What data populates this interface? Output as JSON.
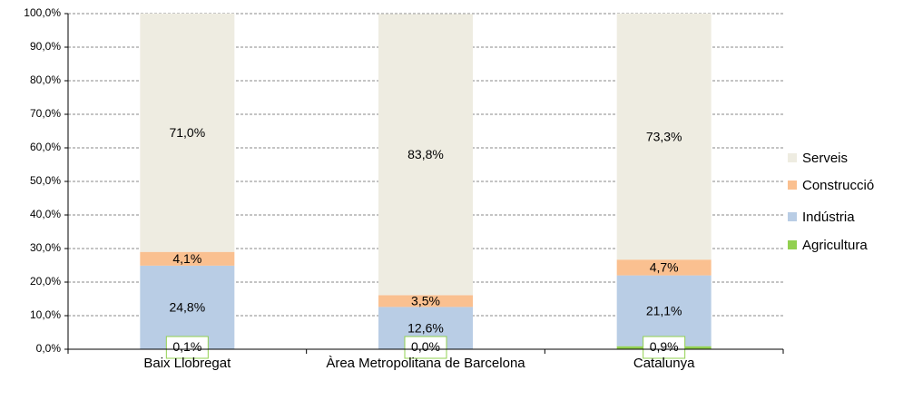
{
  "chart_data": {
    "type": "stacked_bar",
    "categories": [
      "Baix Llobregat",
      "Àrea Metropolitana de Barcelona",
      "Catalunya"
    ],
    "series": [
      {
        "name": "Agricultura",
        "color": "#92d050",
        "values": [
          0.1,
          0.0,
          0.9
        ],
        "value_labels": [
          "0,1%",
          "0,0%",
          "0,9%"
        ]
      },
      {
        "name": "Indústria",
        "color": "#b9cde5",
        "values": [
          24.8,
          12.6,
          21.1
        ],
        "value_labels": [
          "24,8%",
          "12,6%",
          "21,1%"
        ]
      },
      {
        "name": "Construcció",
        "color": "#fac090",
        "values": [
          4.1,
          3.5,
          4.7
        ],
        "value_labels": [
          "4,1%",
          "3,5%",
          "4,7%"
        ]
      },
      {
        "name": "Serveis",
        "color": "#eeece1",
        "values": [
          71.0,
          83.8,
          73.3
        ],
        "value_labels": [
          "71,0%",
          "83,8%",
          "73,3%"
        ]
      }
    ],
    "ylim": [
      0,
      100
    ],
    "yticks": [
      {
        "value": 0,
        "label": "0,0%"
      },
      {
        "value": 10,
        "label": "10,0%"
      },
      {
        "value": 20,
        "label": "20,0%"
      },
      {
        "value": 30,
        "label": "30,0%"
      },
      {
        "value": 40,
        "label": "40,0%"
      },
      {
        "value": 50,
        "label": "50,0%"
      },
      {
        "value": 60,
        "label": "60,0%"
      },
      {
        "value": 70,
        "label": "70,0%"
      },
      {
        "value": 80,
        "label": "80,0%"
      },
      {
        "value": 90,
        "label": "90,0%"
      },
      {
        "value": 100,
        "label": "100,0%"
      }
    ],
    "grid": true,
    "legend": "right"
  }
}
